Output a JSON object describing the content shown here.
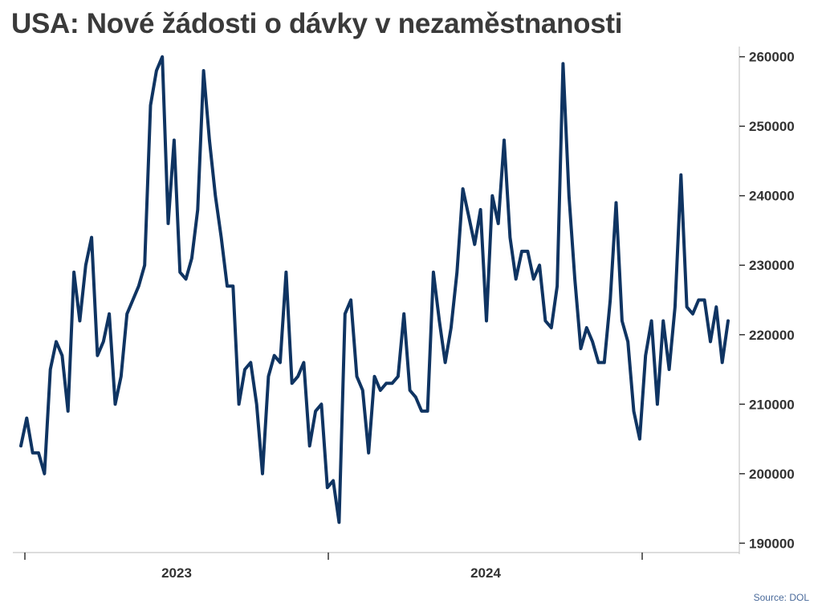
{
  "title": "USA: Nové žádosti o dávky v nezaměstnanosti",
  "source": "Source: DOL",
  "chart_data": {
    "type": "line",
    "title": "USA: Nové žádosti o dávky v nezaměstnanosti",
    "xlabel": "",
    "ylabel": "",
    "x_tick_labels": [
      "2023",
      "2024"
    ],
    "y_ticks": [
      190000,
      200000,
      210000,
      220000,
      230000,
      240000,
      250000,
      260000
    ],
    "ylim": [
      189000,
      261000
    ],
    "grid": false,
    "line_color": "#0f3462",
    "series": [
      {
        "values": [
          204000,
          208000,
          203000,
          203000,
          200000,
          215000,
          219000,
          217000,
          209000,
          229000,
          222000,
          230000,
          234000,
          217000,
          219000,
          223000,
          210000,
          214000,
          223000,
          225000,
          227000,
          230000,
          253000,
          258000,
          260000,
          236000,
          248000,
          229000,
          228000,
          231000,
          238000,
          258000,
          248000,
          240000,
          234000,
          227000,
          227000,
          210000,
          215000,
          216000,
          210000,
          200000,
          214000,
          217000,
          216000,
          229000,
          213000,
          214000,
          216000,
          204000,
          209000,
          210000,
          198000,
          199000,
          193000,
          223000,
          225000,
          214000,
          212000,
          203000,
          214000,
          212000,
          213000,
          213000,
          214000,
          223000,
          212000,
          211000,
          209000,
          209000,
          229000,
          222000,
          216000,
          221000,
          229000,
          241000,
          237000,
          233000,
          238000,
          222000,
          240000,
          236000,
          248000,
          234000,
          228000,
          232000,
          232000,
          228000,
          230000,
          222000,
          221000,
          227000,
          259000,
          240000,
          228000,
          218000,
          221000,
          219000,
          216000,
          216000,
          225000,
          239000,
          222000,
          219000,
          209000,
          205000,
          217000,
          222000,
          210000,
          222000,
          215000,
          224000,
          243000,
          224000,
          223000,
          225000,
          225000,
          219000,
          224000,
          216000,
          222000
        ]
      }
    ]
  }
}
